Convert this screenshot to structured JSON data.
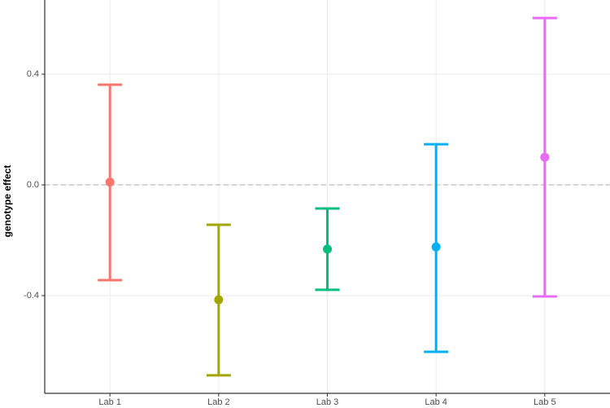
{
  "chart_data": {
    "type": "errorbar",
    "y_label": "genotype effect",
    "categories": [
      "Lab 1",
      "Lab 2",
      "Lab 3",
      "Lab 4",
      "Lab 5"
    ],
    "series": [
      {
        "values": [
          0.01,
          -0.415,
          -0.232,
          -0.224,
          0.1
        ],
        "lower": [
          -0.344,
          -0.688,
          -0.379,
          -0.603,
          -0.403
        ],
        "upper": [
          0.362,
          -0.144,
          -0.085,
          0.147,
          0.603
        ],
        "colors": [
          "#F8766D",
          "#A3A500",
          "#00BF7D",
          "#00B0F6",
          "#E76BF3"
        ]
      }
    ],
    "ylim": [
      -0.753,
      0.668
    ],
    "yticks": [
      -0.4,
      {
        "value": 0,
        "label": "0.0"
      },
      0.4
    ],
    "grid": true,
    "reference_line": 0
  }
}
